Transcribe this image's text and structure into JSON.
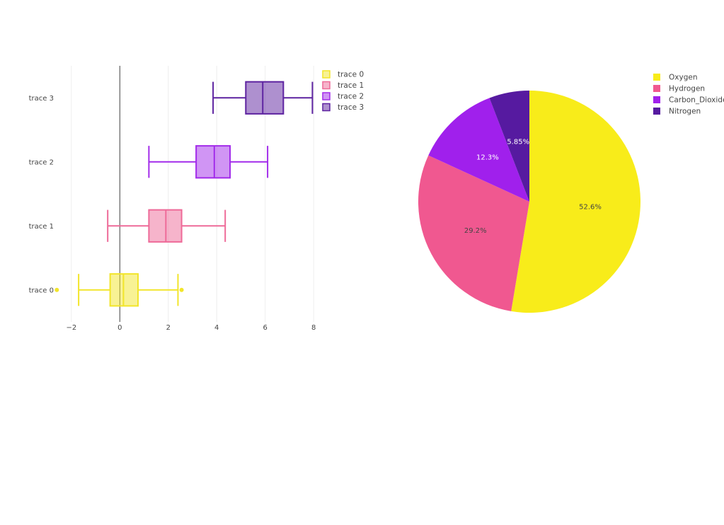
{
  "chart_data": [
    {
      "type": "box",
      "orientation": "horizontal",
      "title": "",
      "xlabel": "",
      "ylabel": "",
      "xlim": [
        -2.2,
        8.2
      ],
      "x_ticks": [
        "−2",
        "0",
        "2",
        "4",
        "6",
        "8"
      ],
      "x_tick_values": [
        -2,
        0,
        2,
        4,
        6,
        8
      ],
      "grid": true,
      "zeroline": true,
      "legend_position": "top-right",
      "series": [
        {
          "name": "trace 0",
          "color": "#f2e52a",
          "min": -1.7,
          "q1": -0.4,
          "median": 0.15,
          "q3": 0.75,
          "max": 2.4,
          "outliers": [
            -2.6,
            2.55
          ]
        },
        {
          "name": "trace 1",
          "color": "#ee6a98",
          "min": -0.5,
          "q1": 1.2,
          "median": 1.9,
          "q3": 2.55,
          "max": 4.35,
          "outliers": []
        },
        {
          "name": "trace 2",
          "color": "#a22bea",
          "min": 1.2,
          "q1": 3.15,
          "median": 3.9,
          "q3": 4.55,
          "max": 6.1,
          "outliers": []
        },
        {
          "name": "trace 3",
          "color": "#5d22a0",
          "min": 3.85,
          "q1": 5.2,
          "median": 5.9,
          "q3": 6.75,
          "max": 7.95,
          "outliers": []
        }
      ]
    },
    {
      "type": "pie",
      "title": "",
      "legend_position": "top-right",
      "categories": [
        "Oxygen",
        "Hydrogen",
        "Carbon_Dioxide",
        "Nitrogen"
      ],
      "values": [
        52.6,
        29.2,
        12.3,
        5.85
      ],
      "labels": [
        "52.6%",
        "29.2%",
        "12.3%",
        "5.85%"
      ],
      "colors": [
        "#f8ec1a",
        "#f05890",
        "#a020ec",
        "#561aa0"
      ],
      "label_colors": [
        "#444444",
        "#444444",
        "#ffffff",
        "#ffffff"
      ]
    }
  ]
}
